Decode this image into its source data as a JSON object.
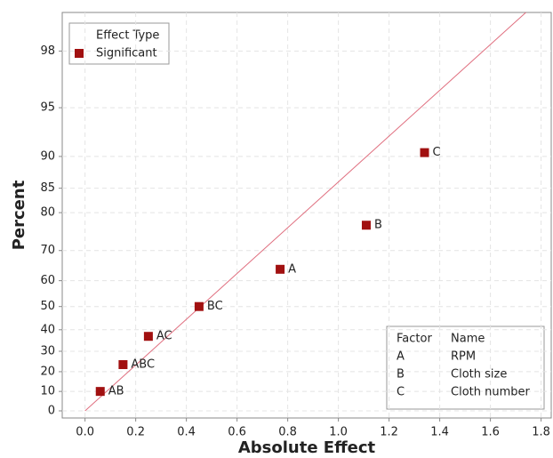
{
  "chart_data": {
    "type": "scatter",
    "x_label": "Absolute Effect",
    "y_label": "Percent",
    "y_scale": "half-normal",
    "xlim": [
      -0.09,
      1.84
    ],
    "xticks": [
      0.0,
      0.2,
      0.4,
      0.6,
      0.8,
      1.0,
      1.2,
      1.4,
      1.6,
      1.8
    ],
    "ylim": [
      0,
      99
    ],
    "yticks": [
      0,
      10,
      20,
      30,
      40,
      50,
      60,
      70,
      80,
      85,
      90,
      95,
      98
    ],
    "grid": true,
    "legend_title": "Effect Type",
    "legend_position": "upper left",
    "series": [
      {
        "name": "Significant",
        "color": "#a11010",
        "x": [
          0.06,
          0.15,
          0.25,
          0.45,
          0.77,
          1.11,
          1.34
        ],
        "values": [
          10,
          23.5,
          37,
          50,
          64,
          77,
          90.5
        ],
        "labels": [
          "AB",
          "ABC",
          "AC",
          "BC",
          "A",
          "B",
          "C"
        ]
      }
    ],
    "fit_line": {
      "color": "#e07080",
      "x": [
        0,
        1.74
      ],
      "values": [
        0,
        99
      ]
    },
    "factor_table": {
      "header": [
        "Factor",
        "Name"
      ],
      "rows": [
        [
          "A",
          "RPM"
        ],
        [
          "B",
          "Cloth size"
        ],
        [
          "C",
          "Cloth number"
        ]
      ]
    }
  }
}
